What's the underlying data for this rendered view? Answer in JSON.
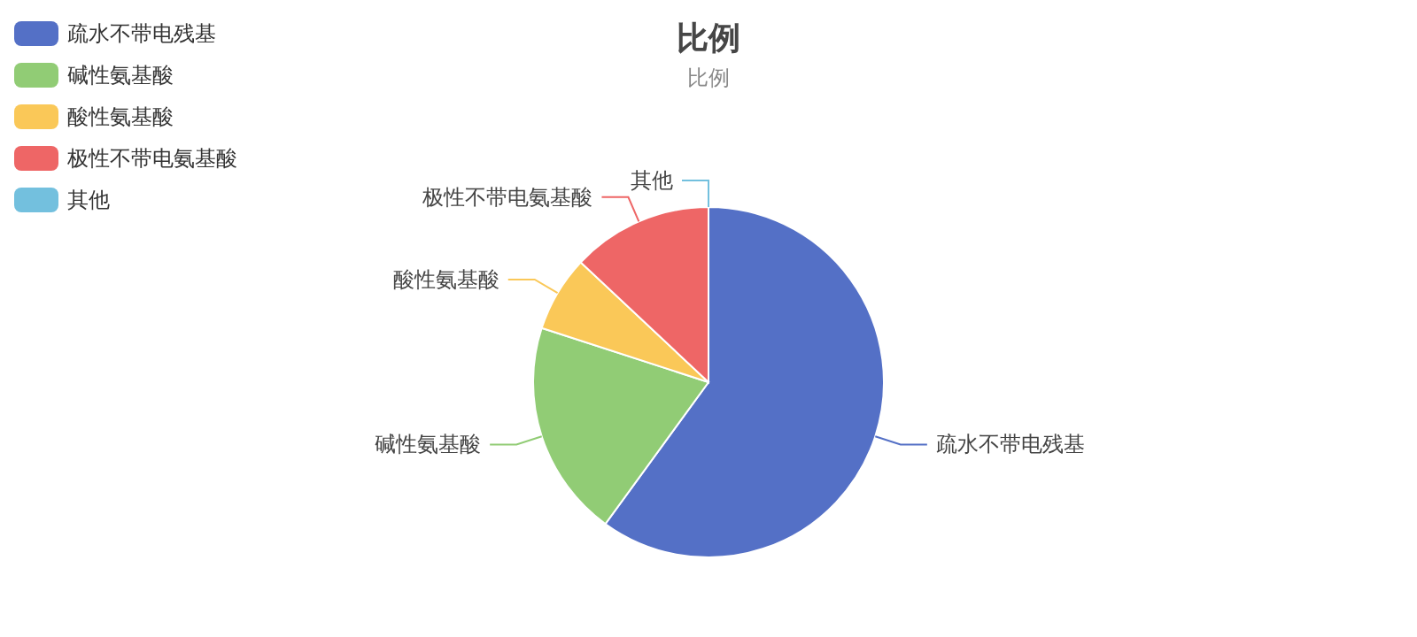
{
  "chart_data": {
    "type": "pie",
    "title": "比例",
    "subtitle": "比例",
    "categories": [
      "疏水不带电残基",
      "碱性氨基酸",
      "酸性氨基酸",
      "极性不带电氨基酸",
      "其他"
    ],
    "values": [
      60,
      20,
      7,
      13,
      0
    ],
    "colors": [
      "#5470c6",
      "#91cc75",
      "#fac858",
      "#ee6666",
      "#73c0de"
    ],
    "legend": "top left"
  }
}
